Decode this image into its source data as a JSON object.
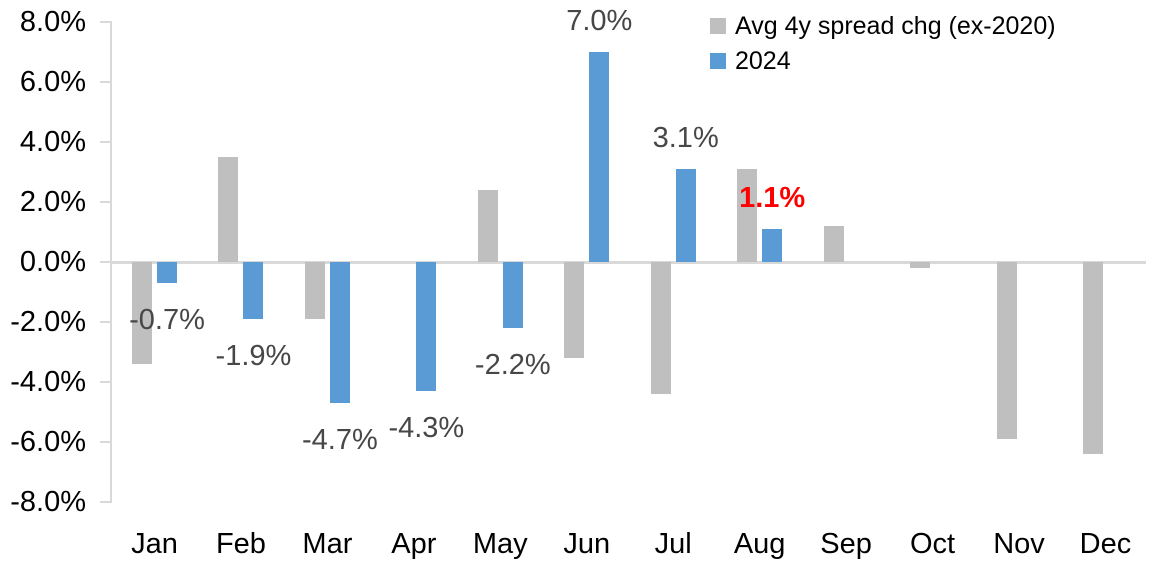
{
  "chart_data": {
    "type": "bar",
    "title": "",
    "categories": [
      "Jan",
      "Feb",
      "Mar",
      "Apr",
      "May",
      "Jun",
      "Jul",
      "Aug",
      "Sep",
      "Oct",
      "Nov",
      "Dec"
    ],
    "series": [
      {
        "name": "Avg 4y spread chg (ex-2020)",
        "color": "#bfbfbf",
        "values": [
          -3.4,
          3.5,
          -1.9,
          0.0,
          2.4,
          -3.2,
          -4.4,
          3.1,
          1.2,
          -0.2,
          -5.9,
          -6.4
        ]
      },
      {
        "name": "2024",
        "color": "#5b9bd5",
        "values": [
          -0.7,
          -1.9,
          -4.7,
          -4.3,
          -2.2,
          7.0,
          3.1,
          1.1,
          null,
          null,
          null,
          null
        ]
      }
    ],
    "data_labels": {
      "on_series": "2024",
      "entries": [
        {
          "category": "Jan",
          "text": "-0.7%",
          "color": "#474747",
          "bold": false
        },
        {
          "category": "Feb",
          "text": "-1.9%",
          "color": "#474747",
          "bold": false
        },
        {
          "category": "Mar",
          "text": "-4.7%",
          "color": "#474747",
          "bold": false
        },
        {
          "category": "Apr",
          "text": "-4.3%",
          "color": "#474747",
          "bold": false
        },
        {
          "category": "May",
          "text": "-2.2%",
          "color": "#474747",
          "bold": false
        },
        {
          "category": "Jun",
          "text": "7.0%",
          "color": "#474747",
          "bold": false
        },
        {
          "category": "Jul",
          "text": "3.1%",
          "color": "#474747",
          "bold": false
        },
        {
          "category": "Aug",
          "text": "1.1%",
          "color": "#ff0000",
          "bold": true
        }
      ]
    },
    "y_axis": {
      "min": -8,
      "max": 8,
      "step": 2,
      "unit": "%",
      "tick_labels": [
        "8.0%",
        "6.0%",
        "4.0%",
        "2.0%",
        "0.0%",
        "-2.0%",
        "-4.0%",
        "-6.0%",
        "-8.0%"
      ]
    },
    "x_axis": {
      "tick_labels": [
        "Jan",
        "Feb",
        "Mar",
        "Apr",
        "May",
        "Jun",
        "Jul",
        "Aug",
        "Sep",
        "Oct",
        "Nov",
        "Dec"
      ]
    },
    "legend": {
      "position": "top-right",
      "items": [
        {
          "label": "Avg 4y spread chg (ex-2020)",
          "color": "#bfbfbf"
        },
        {
          "label": "2024",
          "color": "#5b9bd5"
        }
      ]
    },
    "grid": false,
    "colors": {
      "axis_line": "#d9d9d9",
      "zero_line": "#d9d9d9",
      "tick_text": "#000000",
      "data_label_default": "#474747",
      "data_label_highlight": "#ff0000",
      "background": "#ffffff"
    }
  }
}
